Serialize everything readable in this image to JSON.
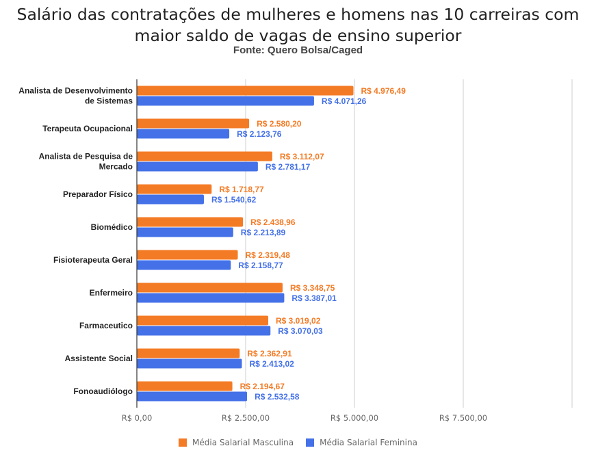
{
  "title_line1": "Salário das contratações de mulheres e homens nas 10 carreiras com",
  "title_line2": "maior saldo de vagas de ensino superior",
  "subtitle": "Fonte: Quero Bolsa/Caged",
  "colors": {
    "male": "#F47B25",
    "female": "#4471E8",
    "grid": "#CCCCCC",
    "axis": "#333333"
  },
  "chart_data": {
    "type": "bar",
    "orientation": "horizontal",
    "title": "Salário das contratações de mulheres e homens nas 10 carreiras com maior saldo de vagas de ensino superior",
    "subtitle": "Fonte: Quero Bolsa/Caged",
    "categories": [
      [
        "Analista de Desenvolvimento",
        "de Sistemas"
      ],
      [
        "Terapeuta Ocupacional"
      ],
      [
        "Analista de Pesquisa de",
        "Mercado"
      ],
      [
        "Preparador Físico"
      ],
      [
        "Biomédico"
      ],
      [
        "Fisioterapeuta Geral"
      ],
      [
        "Enfermeiro"
      ],
      [
        "Farmaceutico"
      ],
      [
        "Assistente Social"
      ],
      [
        "Fonoaudiólogo"
      ]
    ],
    "series": [
      {
        "name": "Média Salarial Masculina",
        "values": [
          4976.49,
          2580.2,
          3112.07,
          1718.77,
          2438.96,
          2319.48,
          3348.75,
          3019.02,
          2362.91,
          2194.67
        ],
        "labels": [
          "R$ 4.976,49",
          "R$ 2.580,20",
          "R$ 3.112,07",
          "R$ 1.718,77",
          "R$ 2.438,96",
          "R$ 2.319,48",
          "R$ 3.348,75",
          "R$ 3.019,02",
          "R$ 2.362,91",
          "R$ 2.194,67"
        ]
      },
      {
        "name": "Média Salarial Feminina",
        "values": [
          4071.26,
          2123.76,
          2781.17,
          1540.62,
          2213.89,
          2158.77,
          3387.01,
          3070.03,
          2413.02,
          2532.58
        ],
        "labels": [
          "R$ 4.071,26",
          "R$ 2.123,76",
          "R$ 2.781,17",
          "R$ 1.540,62",
          "R$ 2.213,89",
          "R$ 2.158,77",
          "R$ 3.387,01",
          "R$ 3.070,03",
          "R$ 2.413,02",
          "R$ 2.532,58"
        ]
      }
    ],
    "xlim": [
      0,
      10000
    ],
    "xticks": [
      0,
      2500,
      5000,
      7500,
      10000
    ],
    "xtick_labels": [
      "R$ 0,00",
      "R$ 2.500,00",
      "R$ 5.000,00",
      "R$ 7.500,00",
      ""
    ],
    "grid": true,
    "legend": "bottom"
  }
}
